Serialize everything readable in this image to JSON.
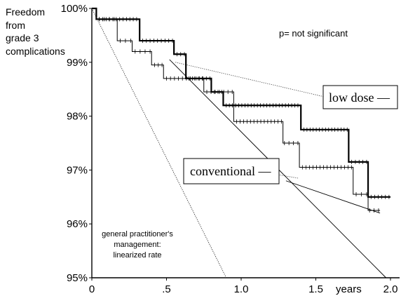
{
  "chart_data": {
    "type": "line",
    "ylabel_lines": [
      "Freedom",
      "from",
      "grade 3",
      "complications"
    ],
    "xlabel": "years",
    "xlim": [
      0,
      2.0
    ],
    "ylim": [
      95,
      100
    ],
    "x_ticks": [
      {
        "value": 0,
        "label": "0"
      },
      {
        "value": 0.5,
        "label": ".5"
      },
      {
        "value": 1.0,
        "label": "1.0"
      },
      {
        "value": 1.5,
        "label": "1.5"
      },
      {
        "value": 2.0,
        "label": "2.0"
      }
    ],
    "y_ticks": [
      {
        "value": 100,
        "label": "100%"
      },
      {
        "value": 99,
        "label": "99%"
      },
      {
        "value": 98,
        "label": "98%"
      },
      {
        "value": 97,
        "label": "97%"
      },
      {
        "value": 96,
        "label": "96%"
      },
      {
        "value": 95,
        "label": "95%"
      }
    ],
    "annotation_pvalue": "p= not significant",
    "annotation_gp": [
      "general practitioner's",
      "management:",
      "linearized rate"
    ],
    "series": [
      {
        "name": "low dose",
        "legend_text": "low dose —",
        "style": "thick",
        "steps": [
          [
            0,
            100
          ],
          [
            0.03,
            99.8
          ],
          [
            0.32,
            99.4
          ],
          [
            0.55,
            99.15
          ],
          [
            0.63,
            98.7
          ],
          [
            0.8,
            98.45
          ],
          [
            0.88,
            98.2
          ],
          [
            1.4,
            97.75
          ],
          [
            1.72,
            97.15
          ],
          [
            1.85,
            96.5
          ],
          [
            2.0,
            96.5
          ]
        ],
        "censor_ranges": [
          [
            0.05,
            0.3,
            12
          ],
          [
            0.34,
            0.54,
            9
          ],
          [
            0.57,
            0.62,
            3
          ],
          [
            0.65,
            0.79,
            7
          ],
          [
            0.82,
            0.87,
            3
          ],
          [
            0.9,
            1.38,
            24
          ],
          [
            1.42,
            1.71,
            15
          ],
          [
            1.74,
            1.84,
            5
          ],
          [
            1.87,
            1.99,
            6
          ]
        ]
      },
      {
        "name": "conventional",
        "legend_text": "conventional —",
        "style": "thin",
        "steps": [
          [
            0,
            100
          ],
          [
            0.03,
            99.8
          ],
          [
            0.17,
            99.4
          ],
          [
            0.27,
            99.2
          ],
          [
            0.4,
            98.95
          ],
          [
            0.48,
            98.7
          ],
          [
            0.75,
            98.45
          ],
          [
            0.95,
            97.9
          ],
          [
            1.28,
            97.5
          ],
          [
            1.39,
            97.05
          ],
          [
            1.75,
            96.55
          ],
          [
            1.85,
            96.25
          ],
          [
            1.93,
            96.25
          ]
        ],
        "censor_ranges": [
          [
            0.05,
            0.15,
            4
          ],
          [
            0.19,
            0.26,
            3
          ],
          [
            0.29,
            0.39,
            4
          ],
          [
            0.42,
            0.47,
            3
          ],
          [
            0.5,
            0.74,
            10
          ],
          [
            0.77,
            0.94,
            7
          ],
          [
            0.97,
            1.27,
            14
          ],
          [
            1.29,
            1.38,
            4
          ],
          [
            1.41,
            1.74,
            15
          ],
          [
            1.77,
            1.84,
            3
          ],
          [
            1.86,
            1.92,
            3
          ]
        ]
      },
      {
        "name": "general practitioner's management: linearized rate",
        "style": "dotted",
        "points": [
          [
            0,
            100
          ],
          [
            0.9,
            95
          ]
        ]
      }
    ],
    "dotted_line_low_dose": [
      [
        0.56,
        99.0
      ],
      [
        1.65,
        98.3
      ]
    ],
    "dotted_line_conventional": [
      [
        0.65,
        97.2
      ],
      [
        1.38,
        96.85
      ]
    ],
    "pointer_low_dose": [
      [
        0.52,
        99.05
      ],
      [
        1.97,
        95.0
      ]
    ],
    "pointer_conventional": [
      [
        1.3,
        96.8
      ],
      [
        1.93,
        96.2
      ]
    ]
  }
}
